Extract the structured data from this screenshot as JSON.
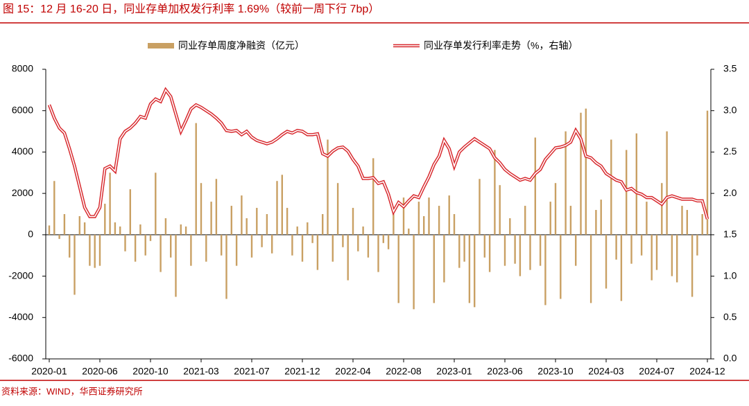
{
  "chart_data": {
    "type": "combo",
    "title": "图 15：12 月 16-20 日，同业存单加权发行利率 1.69%（较前一周下行 7bp）",
    "source": "资料来源：WIND，华西证券研究所",
    "categories": [
      "2020-01",
      null,
      null,
      null,
      null,
      null,
      null,
      null,
      null,
      null,
      "2020-06",
      null,
      null,
      null,
      null,
      null,
      null,
      null,
      null,
      null,
      "2020-10",
      null,
      null,
      null,
      null,
      null,
      null,
      null,
      null,
      null,
      "2021-03",
      null,
      null,
      null,
      null,
      null,
      null,
      null,
      null,
      null,
      "2021-07",
      null,
      null,
      null,
      null,
      null,
      null,
      null,
      null,
      null,
      "2021-12",
      null,
      null,
      null,
      null,
      null,
      null,
      null,
      null,
      null,
      "2022-04",
      null,
      null,
      null,
      null,
      null,
      null,
      null,
      null,
      null,
      "2022-08",
      null,
      null,
      null,
      null,
      null,
      null,
      null,
      null,
      null,
      "2023-01",
      null,
      null,
      null,
      null,
      null,
      null,
      null,
      null,
      null,
      "2023-06",
      null,
      null,
      null,
      null,
      null,
      null,
      null,
      null,
      null,
      "2023-10",
      null,
      null,
      null,
      null,
      null,
      null,
      null,
      null,
      null,
      "2024-03",
      null,
      null,
      null,
      null,
      null,
      null,
      null,
      null,
      null,
      "2024-07",
      null,
      null,
      null,
      null,
      null,
      null,
      null,
      null,
      null,
      "2024-12"
    ],
    "series": [
      {
        "name": "同业存单周度净融资（亿元）",
        "type": "bar",
        "color": "#c9a063",
        "values": [
          450,
          2600,
          -200,
          1000,
          -1100,
          -2900,
          900,
          600,
          -1500,
          -1600,
          -1500,
          1500,
          3000,
          600,
          400,
          -800,
          2200,
          -1300,
          500,
          -1000,
          -300,
          3000,
          -1800,
          800,
          -1100,
          -3000,
          500,
          400,
          -1500,
          5400,
          2500,
          -1300,
          1600,
          2700,
          -1000,
          -3100,
          1400,
          -1500,
          1900,
          800,
          -1100,
          1300,
          -600,
          1000,
          -900,
          2600,
          2900,
          1300,
          -1000,
          400,
          -1300,
          600,
          -400,
          -1700,
          1000,
          4600,
          -1300,
          2500,
          -600,
          -2200,
          1300,
          -800,
          400,
          -1100,
          3700,
          -1800,
          -400,
          -700,
          1000,
          -3300,
          1800,
          300,
          -3600,
          1600,
          900,
          1800,
          -3300,
          1400,
          -2300,
          1900,
          1000,
          -1600,
          -1300,
          -3300,
          -3500,
          2700,
          -1100,
          -1800,
          4100,
          2400,
          -1500,
          800,
          -1400,
          -2000,
          1400,
          -1700,
          4700,
          -1500,
          -3400,
          1600,
          2500,
          -3100,
          5000,
          1400,
          -1500,
          5900,
          6100,
          -3300,
          1200,
          1700,
          -2600,
          4600,
          -1200,
          -3200,
          4100,
          -1400,
          4900,
          -1000,
          1600,
          -2200,
          -1700,
          2500,
          5000,
          -2000,
          -2300,
          1400,
          1200,
          -3000,
          -1000,
          1000,
          6000
        ]
      },
      {
        "name": "同业存单发行利率走势（%，右轴）",
        "type": "line",
        "axis": "y2",
        "color": "#d7262b",
        "values": [
          3.07,
          2.91,
          2.79,
          2.73,
          2.54,
          2.33,
          2.08,
          1.83,
          1.72,
          1.72,
          1.83,
          2.3,
          2.33,
          2.27,
          2.66,
          2.75,
          2.79,
          2.85,
          2.93,
          2.91,
          3.08,
          3.14,
          3.11,
          3.25,
          3.17,
          2.96,
          2.75,
          2.88,
          3.02,
          3.07,
          3.04,
          3.0,
          2.96,
          2.91,
          2.85,
          2.76,
          2.75,
          2.76,
          2.71,
          2.75,
          2.68,
          2.64,
          2.62,
          2.6,
          2.62,
          2.66,
          2.71,
          2.75,
          2.73,
          2.76,
          2.75,
          2.71,
          2.71,
          2.72,
          2.48,
          2.45,
          2.51,
          2.55,
          2.56,
          2.51,
          2.41,
          2.33,
          2.18,
          2.18,
          2.19,
          2.12,
          2.14,
          1.99,
          1.78,
          1.89,
          1.84,
          1.91,
          1.97,
          1.95,
          2.08,
          2.2,
          2.35,
          2.45,
          2.64,
          2.54,
          2.33,
          2.5,
          2.56,
          2.61,
          2.66,
          2.62,
          2.58,
          2.54,
          2.43,
          2.37,
          2.29,
          2.24,
          2.2,
          2.16,
          2.18,
          2.16,
          2.24,
          2.29,
          2.41,
          2.48,
          2.55,
          2.56,
          2.58,
          2.62,
          2.76,
          2.66,
          2.45,
          2.43,
          2.37,
          2.33,
          2.24,
          2.2,
          2.16,
          2.14,
          2.04,
          2.06,
          2.01,
          1.99,
          1.95,
          1.95,
          1.91,
          1.87,
          1.95,
          1.97,
          1.95,
          1.93,
          1.93,
          1.93,
          1.91,
          1.91,
          1.69
        ]
      }
    ],
    "ylim": [
      -6000,
      8000
    ],
    "yticks": [
      -6000,
      -4000,
      -2000,
      0,
      2000,
      4000,
      6000,
      8000
    ],
    "y2lim": [
      0,
      3.5
    ],
    "y2ticks": [
      {
        "value": 0,
        "label": "0.0"
      },
      0.5,
      {
        "value": 1,
        "label": "1.0"
      },
      1.5,
      {
        "value": 2,
        "label": "2.0"
      },
      2.5,
      {
        "value": 3,
        "label": "3.0"
      },
      3.5
    ]
  }
}
